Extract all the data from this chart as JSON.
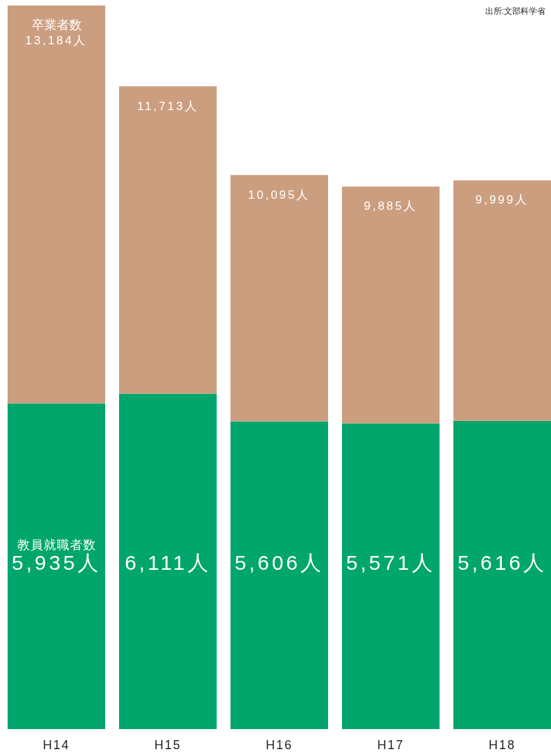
{
  "chart_data": {
    "type": "bar",
    "stacked": true,
    "categories": [
      "H14",
      "H15",
      "H16",
      "H17",
      "H18"
    ],
    "series": [
      {
        "name": "教員就職者数",
        "color": "#00a66b",
        "values": [
          5935,
          6111,
          5606,
          5571,
          5616
        ],
        "value_labels": [
          "5,935人",
          "6,111人",
          "5,606人",
          "5,571人",
          "5,616人"
        ]
      },
      {
        "name": "卒業者数",
        "color": "#cc9e80",
        "values": [
          7249,
          5602,
          4489,
          4314,
          4383
        ]
      }
    ],
    "totals": [
      "13,184人",
      "11,713人",
      "10,095人",
      "9,885人",
      "9,999人"
    ],
    "annotations": [
      "出所:文部科学省"
    ]
  }
}
